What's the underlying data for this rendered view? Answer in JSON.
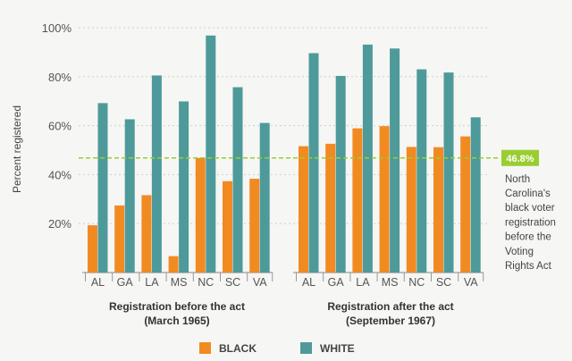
{
  "chart_data": {
    "type": "bar",
    "ylabel": "Percent registered",
    "ylim": [
      0,
      100
    ],
    "yticks": [
      "20%",
      "40%",
      "60%",
      "80%",
      "100%"
    ],
    "grid": true,
    "colors": {
      "black": "#f28a22",
      "white": "#4e9a9a",
      "reference": "#9acd32",
      "grid": "#d0d0d0"
    },
    "legend": {
      "position": "bottom-center",
      "entries": [
        "BLACK",
        "WHITE"
      ]
    },
    "groups": [
      {
        "title_line1": "Registration before the act",
        "title_line2": "(March 1965)",
        "categories": [
          "AL",
          "GA",
          "LA",
          "MS",
          "NC",
          "SC",
          "VA"
        ],
        "series": [
          {
            "name": "BLACK",
            "values": [
              19.3,
              27.4,
              31.6,
              6.7,
              46.8,
              37.3,
              38.3
            ]
          },
          {
            "name": "WHITE",
            "values": [
              69.2,
              62.6,
              80.5,
              69.9,
              96.8,
              75.7,
              61.1
            ]
          }
        ]
      },
      {
        "title_line1": "Registration after the act",
        "title_line2": "(September 1967)",
        "categories": [
          "AL",
          "GA",
          "LA",
          "MS",
          "NC",
          "SC",
          "VA"
        ],
        "series": [
          {
            "name": "BLACK",
            "values": [
              51.6,
              52.6,
              58.9,
              59.8,
              51.3,
              51.2,
              55.6
            ]
          },
          {
            "name": "WHITE",
            "values": [
              89.6,
              80.3,
              93.1,
              91.5,
              83.0,
              81.7,
              63.4
            ]
          }
        ]
      }
    ],
    "reference_line": {
      "value": 46.8,
      "label": "46.8%",
      "note_lines": [
        "North",
        "Carolina's",
        "black voter",
        "registration",
        "before the",
        "Voting",
        "Rights Act"
      ]
    }
  }
}
